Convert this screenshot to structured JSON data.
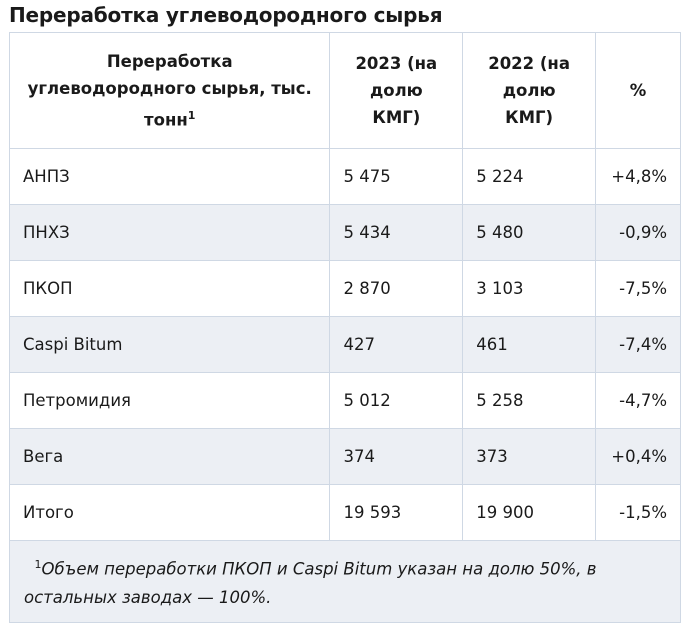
{
  "title": "Переработка углеводородного сырья",
  "headers": [
    "Переработка углеводородного сырья, тыс. тонн",
    "2023 (на долю КМГ)",
    "2022 (на долю КМГ)",
    "%"
  ],
  "header_sup": "1",
  "rows": [
    [
      "АНПЗ",
      "5 475",
      "5 224",
      "+4,8%"
    ],
    [
      "ПНХЗ",
      "5 434",
      "5 480",
      "-0,9%"
    ],
    [
      "ПКОП",
      "2 870",
      "3 103",
      "-7,5%"
    ],
    [
      "Caspi Bitum",
      "427",
      "461",
      "-7,4%"
    ],
    [
      "Петромидия",
      "5 012",
      "5 258",
      "-4,7%"
    ],
    [
      "Вега",
      "374",
      "373",
      "+0,4%"
    ],
    [
      "Итого",
      "19 593",
      "19 900",
      "-1,5%"
    ]
  ],
  "footnote": {
    "sup": "1",
    "text": "Объем переработки ПКОП и Caspi Bitum указан на долю 50%, в остальных заводах — 100%."
  },
  "colors": {
    "border": "#cfd8e4",
    "stripe": "#eceff4"
  }
}
